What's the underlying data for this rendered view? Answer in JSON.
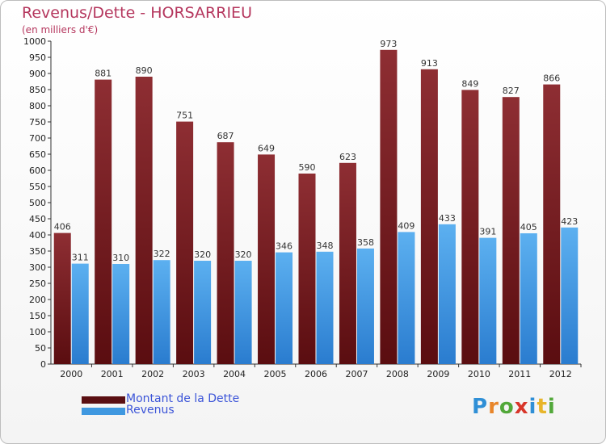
{
  "title": "Revenus/Dette - HORSARRIEU",
  "subtitle": "(en milliers d'€)",
  "colors": {
    "dette": "#7a1f22",
    "revenus": "#4a9fe0",
    "title": "#b5375e",
    "legend_text": "#3b54d8"
  },
  "legend": [
    {
      "label": "Montant de la Dette",
      "color": "#5a0f12"
    },
    {
      "label": "Revenus",
      "color": "#3f98e0"
    }
  ],
  "logo": {
    "text": "Proxiti",
    "letters": [
      "P",
      "r",
      "o",
      "x",
      "i",
      "t",
      "i"
    ]
  },
  "chart_data": {
    "type": "bar",
    "title": "Revenus/Dette - HORSARRIEU",
    "ylabel": "(en milliers d'€)",
    "xlabel": "",
    "ylim": [
      0,
      1000
    ],
    "yticks": [
      0,
      50,
      100,
      150,
      200,
      250,
      300,
      350,
      400,
      450,
      500,
      550,
      600,
      650,
      700,
      750,
      800,
      850,
      900,
      950,
      1000
    ],
    "categories": [
      "2000",
      "2001",
      "2002",
      "2003",
      "2004",
      "2005",
      "2006",
      "2007",
      "2008",
      "2009",
      "2010",
      "2011",
      "2012"
    ],
    "series": [
      {
        "name": "Montant de la Dette",
        "values": [
          406,
          881,
          890,
          751,
          687,
          649,
          590,
          623,
          973,
          913,
          849,
          827,
          866
        ]
      },
      {
        "name": "Revenus",
        "values": [
          311,
          310,
          322,
          320,
          320,
          346,
          348,
          358,
          409,
          433,
          391,
          405,
          423
        ]
      }
    ],
    "legend_position": "bottom-left",
    "grid": false
  }
}
